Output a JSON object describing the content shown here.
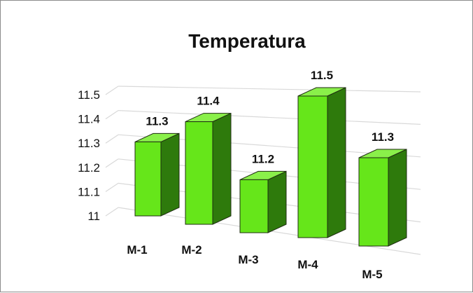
{
  "chart_data": {
    "type": "bar",
    "title": "Temperatura",
    "categories": [
      "M-1",
      "M-2",
      "M-3",
      "M-4",
      "M-5"
    ],
    "values": [
      11.3,
      11.4,
      11.2,
      11.5,
      11.3
    ],
    "data_labels": [
      "11.3",
      "11.4",
      "11.2",
      "11.5",
      "11.3"
    ],
    "ylim": [
      11,
      11.5
    ],
    "yticks": [
      "11",
      "11.1",
      "11.2",
      "11.3",
      "11.4",
      "11.5"
    ],
    "grid": true,
    "style": "3d-perspective",
    "colors": {
      "front": "#66e61a",
      "side": "#2e7a0c",
      "top": "#8af04a",
      "edge": "#1f2d12",
      "grid": "#d9d9d9"
    }
  }
}
